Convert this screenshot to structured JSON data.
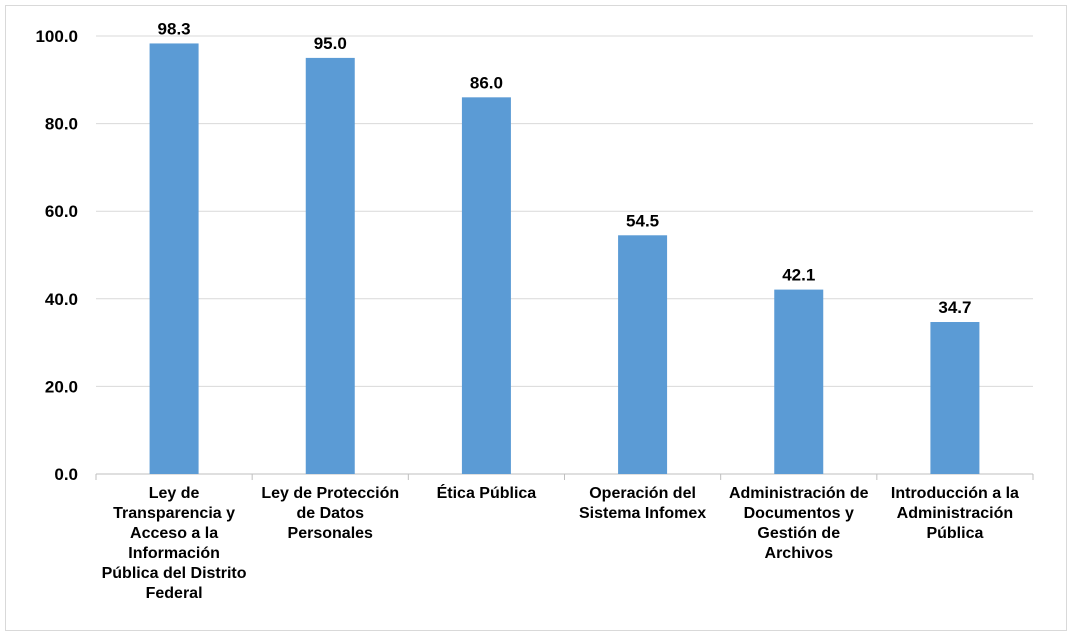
{
  "chart_data": {
    "type": "bar",
    "title": "",
    "xlabel": "",
    "ylabel": "",
    "categories": [
      "Ley de Transparencia y Acceso a la Información Pública del Distrito Federal",
      "Ley de Protección de Datos Personales",
      "Ética Pública",
      "Operación del Sistema Infomex",
      "Administración de Documentos y Gestión de Archivos",
      "Introducción a la Administración Pública"
    ],
    "values": [
      98.3,
      95.0,
      86.0,
      54.5,
      42.1,
      34.7
    ],
    "value_labels": [
      "98.3",
      "95.0",
      "86.0",
      "54.5",
      "42.1",
      "34.7"
    ],
    "ylim": [
      0,
      100
    ],
    "yticks": [
      "0.0",
      "20.0",
      "40.0",
      "60.0",
      "80.0",
      "100.0"
    ],
    "grid": true,
    "colors": {
      "bar": "#5b9bd5",
      "grid": "#d9d9d9",
      "axis": "#bfbfbf"
    }
  }
}
